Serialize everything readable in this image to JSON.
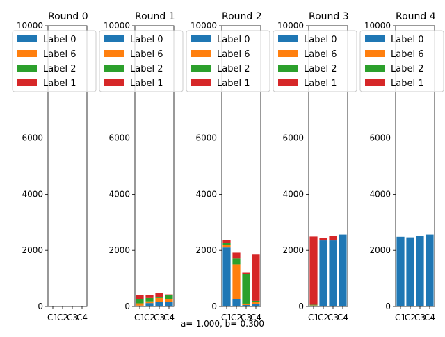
{
  "colors": {
    "Label 0": "#1f77b4",
    "Label 6": "#ff7f0e",
    "Label 2": "#2ca02c",
    "Label 1": "#d62728"
  },
  "footer_text": "a=-1.000, b=-0.300",
  "chart_data": [
    {
      "type": "bar",
      "stacked": true,
      "title": "Round 0",
      "categories": [
        "C1",
        "C2",
        "C3",
        "C4"
      ],
      "ylim": [
        0,
        10000
      ],
      "yticks": [
        0,
        2000,
        4000,
        6000,
        10000
      ],
      "legend": "top",
      "series": [
        {
          "name": "Label 0",
          "values": [
            0,
            0,
            0,
            0
          ]
        },
        {
          "name": "Label 6",
          "values": [
            0,
            0,
            0,
            0
          ]
        },
        {
          "name": "Label 2",
          "values": [
            0,
            0,
            0,
            0
          ]
        },
        {
          "name": "Label 1",
          "values": [
            0,
            0,
            0,
            0
          ]
        }
      ]
    },
    {
      "type": "bar",
      "stacked": true,
      "title": "Round 1",
      "categories": [
        "C1",
        "C2",
        "C3",
        "C4"
      ],
      "ylim": [
        0,
        10000
      ],
      "yticks": [
        0,
        2000,
        4000,
        6000,
        10000
      ],
      "legend": "top",
      "series": [
        {
          "name": "Label 0",
          "values": [
            30,
            120,
            150,
            160
          ]
        },
        {
          "name": "Label 6",
          "values": [
            80,
            60,
            150,
            110
          ]
        },
        {
          "name": "Label 2",
          "values": [
            150,
            120,
            30,
            130
          ]
        },
        {
          "name": "Label 1",
          "values": [
            140,
            120,
            150,
            30
          ]
        }
      ]
    },
    {
      "type": "bar",
      "stacked": true,
      "title": "Round 2",
      "categories": [
        "C1",
        "C2",
        "C3",
        "C4"
      ],
      "ylim": [
        0,
        10000
      ],
      "yticks": [
        0,
        2000,
        4000,
        6000,
        10000
      ],
      "legend": "top",
      "series": [
        {
          "name": "Label 0",
          "values": [
            2100,
            250,
            50,
            100
          ]
        },
        {
          "name": "Label 6",
          "values": [
            100,
            1250,
            50,
            50
          ]
        },
        {
          "name": "Label 2",
          "values": [
            60,
            200,
            1050,
            50
          ]
        },
        {
          "name": "Label 1",
          "values": [
            100,
            220,
            50,
            1650
          ]
        }
      ]
    },
    {
      "type": "bar",
      "stacked": true,
      "title": "Round 3",
      "categories": [
        "C1",
        "C2",
        "C3",
        "C4"
      ],
      "ylim": [
        0,
        10000
      ],
      "yticks": [
        0,
        2000,
        4000,
        6000,
        10000
      ],
      "legend": "top",
      "series": [
        {
          "name": "Label 0",
          "values": [
            30,
            2350,
            2350,
            2560
          ]
        },
        {
          "name": "Label 6",
          "values": [
            10,
            0,
            0,
            0
          ]
        },
        {
          "name": "Label 2",
          "values": [
            20,
            0,
            0,
            0
          ]
        },
        {
          "name": "Label 1",
          "values": [
            2430,
            100,
            170,
            0
          ]
        }
      ]
    },
    {
      "type": "bar",
      "stacked": true,
      "title": "Round 4",
      "categories": [
        "C1",
        "C2",
        "C3",
        "C4"
      ],
      "ylim": [
        0,
        10000
      ],
      "yticks": [
        0,
        2000,
        4000,
        6000,
        10000
      ],
      "legend": "top",
      "series": [
        {
          "name": "Label 0",
          "values": [
            2480,
            2460,
            2520,
            2560
          ]
        },
        {
          "name": "Label 6",
          "values": [
            0,
            0,
            0,
            0
          ]
        },
        {
          "name": "Label 2",
          "values": [
            0,
            0,
            0,
            0
          ]
        },
        {
          "name": "Label 1",
          "values": [
            0,
            0,
            0,
            0
          ]
        }
      ]
    }
  ]
}
